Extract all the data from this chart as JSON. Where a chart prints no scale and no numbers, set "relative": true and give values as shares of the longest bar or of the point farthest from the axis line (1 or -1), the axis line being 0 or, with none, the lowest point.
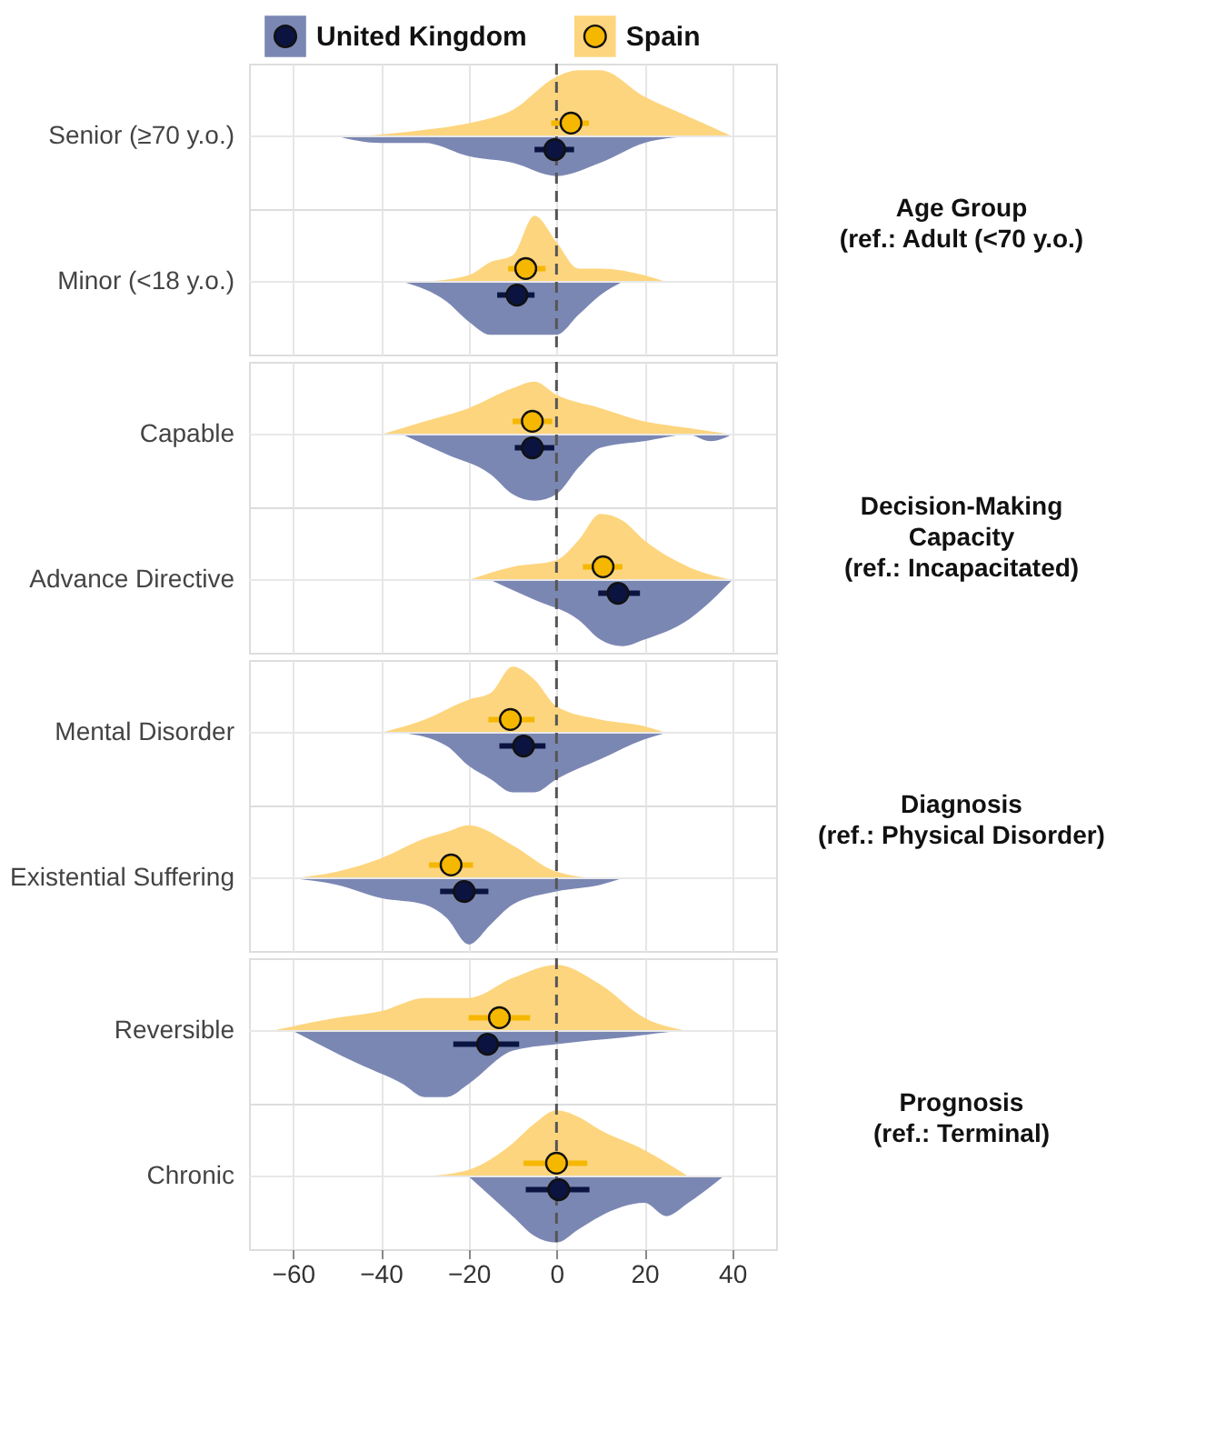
{
  "chart_data": [
    {
      "type": "area",
      "relative": true,
      "ylabel": "Senior (≥70 y.o.)",
      "annotations": [
        "Age Group\n(ref.: Adult (<70 y.o.)"
      ],
      "legend": "top",
      "xlim": [
        -70,
        50
      ],
      "xticks": [
        -60,
        -40,
        -20,
        0,
        20,
        40
      ],
      "grid": "x",
      "tick_labels": false,
      "ref_lines": [
        {
          "axis": "x",
          "value": 0,
          "color": "#555555",
          "line_style": "dashed"
        },
        {
          "axis": "y",
          "value": 0,
          "color": "#e8e8e8"
        }
      ],
      "series": [
        {
          "type": "area",
          "color": "#7b87b3",
          "x": [
            -50,
            -40,
            -30,
            -20,
            -10,
            0,
            10,
            20,
            30
          ],
          "values": [
            0,
            -0.1,
            -0.1,
            -0.3,
            -0.4,
            -0.6,
            -0.4,
            -0.1,
            0
          ]
        },
        {
          "type": "area",
          "color": "#fdd57e",
          "x": [
            -45,
            -30,
            -20,
            -10,
            0,
            5,
            10,
            20,
            30,
            40
          ],
          "values": [
            0,
            0.1,
            0.2,
            0.4,
            0.9,
            1,
            1,
            0.6,
            0.3,
            0
          ]
        },
        {
          "name": "United Kingdom",
          "type": "scatter",
          "marker": "circle",
          "color": "#0b1440",
          "x": [
            -0.4
          ],
          "values": [
            -0.2
          ],
          "xerrors": [
            [
              -5,
              4
            ]
          ]
        },
        {
          "name": "Spain",
          "type": "scatter",
          "marker": "circle",
          "color": "#f5b700",
          "x": [
            3.3
          ],
          "values": [
            0.2
          ],
          "xerrors": [
            [
              -1.2,
              7.4
            ]
          ]
        }
      ]
    },
    {
      "type": "area",
      "relative": true,
      "ylabel": "Minor (<18 y.o.)",
      "xlim": [
        -70,
        50
      ],
      "xticks": [
        -60,
        -40,
        -20,
        0,
        20,
        40
      ],
      "grid": "x",
      "tick_labels": false,
      "ref_lines": [
        {
          "axis": "x",
          "value": 0,
          "color": "#555555",
          "line_style": "dashed"
        },
        {
          "axis": "y",
          "value": 0,
          "color": "#e8e8e8"
        }
      ],
      "series": [
        {
          "type": "area",
          "color": "#7b87b3",
          "x": [
            -35,
            -25,
            -20,
            -15,
            -10,
            -5,
            0,
            5,
            10,
            15
          ],
          "values": [
            0,
            -0.3,
            -0.6,
            -0.8,
            -0.8,
            -0.8,
            -0.8,
            -0.5,
            -0.2,
            0
          ]
        },
        {
          "type": "area",
          "color": "#fdd57e",
          "x": [
            -30,
            -20,
            -15,
            -10,
            -5,
            0,
            5,
            10,
            20,
            25
          ],
          "values": [
            0,
            0.1,
            0.3,
            0.4,
            1,
            0.6,
            0.2,
            0.2,
            0.1,
            0
          ]
        },
        {
          "type": "scatter",
          "marker": "circle",
          "color": "#0b1440",
          "x": [
            -9
          ],
          "values": [
            -0.2
          ],
          "xerrors": [
            [
              -13.5,
              -5
            ]
          ]
        },
        {
          "type": "scatter",
          "marker": "circle",
          "color": "#f5b700",
          "x": [
            -7
          ],
          "values": [
            0.2
          ],
          "xerrors": [
            [
              -11,
              -2.5
            ]
          ]
        }
      ]
    },
    {
      "type": "area",
      "relative": true,
      "ylabel": "Capable",
      "annotations": [
        "Decision-Making\nCapacity\n(ref.: Incapacitated)"
      ],
      "xlim": [
        -70,
        50
      ],
      "xticks": [
        -60,
        -40,
        -20,
        0,
        20,
        40
      ],
      "grid": "x",
      "tick_labels": false,
      "ref_lines": [
        {
          "axis": "x",
          "value": 0,
          "color": "#555555",
          "line_style": "dashed"
        },
        {
          "axis": "y",
          "value": 0,
          "color": "#e8e8e8"
        }
      ],
      "series": [
        {
          "type": "area",
          "color": "#7b87b3",
          "x": [
            -35,
            -25,
            -15,
            -10,
            -5,
            0,
            5,
            10,
            20,
            30,
            35,
            40
          ],
          "values": [
            0,
            -0.3,
            -0.6,
            -0.9,
            -1,
            -0.9,
            -0.5,
            -0.2,
            -0.1,
            0,
            -0.1,
            0
          ]
        },
        {
          "type": "area",
          "color": "#fdd57e",
          "x": [
            -40,
            -30,
            -20,
            -10,
            -5,
            0,
            10,
            20,
            30,
            40
          ],
          "values": [
            0,
            0.2,
            0.4,
            0.7,
            0.8,
            0.6,
            0.4,
            0.2,
            0.1,
            0
          ]
        },
        {
          "type": "scatter",
          "marker": "circle",
          "color": "#0b1440",
          "x": [
            -5.5
          ],
          "values": [
            -0.2
          ],
          "xerrors": [
            [
              -9.5,
              -0.5
            ]
          ]
        },
        {
          "type": "scatter",
          "marker": "circle",
          "color": "#f5b700",
          "x": [
            -5.5
          ],
          "values": [
            0.2
          ],
          "xerrors": [
            [
              -10,
              -1
            ]
          ]
        }
      ]
    },
    {
      "type": "area",
      "relative": true,
      "ylabel": "Advance Directive",
      "xlim": [
        -70,
        50
      ],
      "xticks": [
        -60,
        -40,
        -20,
        0,
        20,
        40
      ],
      "grid": "x",
      "tick_labels": false,
      "ref_lines": [
        {
          "axis": "x",
          "value": 0,
          "color": "#555555",
          "line_style": "dashed"
        },
        {
          "axis": "y",
          "value": 0,
          "color": "#e8e8e8"
        }
      ],
      "series": [
        {
          "type": "area",
          "color": "#7b87b3",
          "x": [
            -15,
            -5,
            5,
            10,
            15,
            20,
            30,
            40
          ],
          "values": [
            0,
            -0.3,
            -0.6,
            -0.9,
            -1,
            -0.9,
            -0.6,
            0
          ]
        },
        {
          "type": "area",
          "color": "#fdd57e",
          "x": [
            -20,
            -10,
            0,
            5,
            10,
            15,
            20,
            30,
            40
          ],
          "values": [
            0,
            0.2,
            0.3,
            0.6,
            1,
            0.9,
            0.6,
            0.2,
            0
          ]
        },
        {
          "type": "scatter",
          "marker": "circle",
          "color": "#0b1440",
          "x": [
            14
          ],
          "values": [
            -0.2
          ],
          "xerrors": [
            [
              9.5,
              19
            ]
          ]
        },
        {
          "type": "scatter",
          "marker": "circle",
          "color": "#f5b700",
          "x": [
            10.6
          ],
          "values": [
            0.2
          ],
          "xerrors": [
            [
              6,
              15
            ]
          ]
        }
      ]
    },
    {
      "type": "area",
      "relative": true,
      "ylabel": "Mental Disorder",
      "annotations": [
        "Diagnosis\n(ref.: Physical Disorder)"
      ],
      "xlim": [
        -70,
        50
      ],
      "xticks": [
        -60,
        -40,
        -20,
        0,
        20,
        40
      ],
      "grid": "x",
      "tick_labels": false,
      "ref_lines": [
        {
          "axis": "x",
          "value": 0,
          "color": "#555555",
          "line_style": "dashed"
        },
        {
          "axis": "y",
          "value": 0,
          "color": "#e8e8e8"
        }
      ],
      "series": [
        {
          "type": "area",
          "color": "#7b87b3",
          "x": [
            -35,
            -25,
            -20,
            -15,
            -10,
            -5,
            0,
            10,
            20,
            25
          ],
          "values": [
            0,
            -0.2,
            -0.5,
            -0.7,
            -0.9,
            -0.9,
            -0.7,
            -0.4,
            -0.1,
            0
          ]
        },
        {
          "type": "area",
          "color": "#fdd57e",
          "x": [
            -40,
            -30,
            -20,
            -15,
            -10,
            -5,
            0,
            10,
            20,
            25
          ],
          "values": [
            0,
            0.2,
            0.5,
            0.6,
            1,
            0.8,
            0.4,
            0.2,
            0.1,
            0
          ]
        },
        {
          "type": "scatter",
          "marker": "circle",
          "color": "#0b1440",
          "x": [
            -7.5
          ],
          "values": [
            -0.2
          ],
          "xerrors": [
            [
              -13,
              -2.5
            ]
          ]
        },
        {
          "type": "scatter",
          "marker": "circle",
          "color": "#f5b700",
          "x": [
            -10.5
          ],
          "values": [
            0.2
          ],
          "xerrors": [
            [
              -15.5,
              -5
            ]
          ]
        }
      ]
    },
    {
      "type": "area",
      "relative": true,
      "ylabel": "Existential Suffering",
      "xlim": [
        -70,
        50
      ],
      "xticks": [
        -60,
        -40,
        -20,
        0,
        20,
        40
      ],
      "grid": "x",
      "tick_labels": false,
      "ref_lines": [
        {
          "axis": "x",
          "value": 0,
          "color": "#555555",
          "line_style": "dashed"
        },
        {
          "axis": "y",
          "value": 0,
          "color": "#e8e8e8"
        }
      ],
      "series": [
        {
          "type": "area",
          "color": "#7b87b3",
          "x": [
            -60,
            -50,
            -40,
            -30,
            -25,
            -20,
            -15,
            -10,
            0,
            10,
            15
          ],
          "values": [
            0,
            -0.1,
            -0.3,
            -0.4,
            -0.6,
            -1,
            -0.7,
            -0.4,
            -0.2,
            -0.1,
            0
          ]
        },
        {
          "type": "area",
          "color": "#fdd57e",
          "x": [
            -60,
            -50,
            -40,
            -30,
            -25,
            -20,
            -10,
            0,
            10,
            15
          ],
          "values": [
            0,
            0.1,
            0.3,
            0.6,
            0.7,
            0.8,
            0.5,
            0.1,
            0,
            0
          ]
        },
        {
          "type": "scatter",
          "marker": "circle",
          "color": "#0b1440",
          "x": [
            -21
          ],
          "values": [
            -0.2
          ],
          "xerrors": [
            [
              -26.5,
              -15.5
            ]
          ]
        },
        {
          "type": "scatter",
          "marker": "circle",
          "color": "#f5b700",
          "x": [
            -24
          ],
          "values": [
            0.2
          ],
          "xerrors": [
            [
              -29,
              -19
            ]
          ]
        }
      ]
    },
    {
      "type": "area",
      "relative": true,
      "ylabel": "Reversible",
      "annotations": [
        "Prognosis\n(ref.: Terminal)"
      ],
      "xlim": [
        -70,
        50
      ],
      "xticks": [
        -60,
        -40,
        -20,
        0,
        20,
        40
      ],
      "grid": "x",
      "tick_labels": false,
      "ref_lines": [
        {
          "axis": "x",
          "value": 0,
          "color": "#555555",
          "line_style": "dashed"
        },
        {
          "axis": "y",
          "value": 0,
          "color": "#e8e8e8"
        }
      ],
      "series": [
        {
          "type": "area",
          "color": "#7b87b3",
          "x": [
            -60,
            -45,
            -35,
            -30,
            -25,
            -20,
            -10,
            0,
            15,
            30,
            45
          ],
          "values": [
            0,
            -0.5,
            -0.8,
            -1,
            -1,
            -0.8,
            -0.3,
            -0.2,
            -0.1,
            0,
            0
          ]
        },
        {
          "type": "area",
          "color": "#fdd57e",
          "x": [
            -65,
            -50,
            -40,
            -30,
            -20,
            -10,
            0,
            10,
            20,
            30
          ],
          "values": [
            0,
            0.2,
            0.3,
            0.5,
            0.5,
            0.8,
            1,
            0.7,
            0.2,
            0
          ]
        },
        {
          "type": "scatter",
          "marker": "circle",
          "color": "#0b1440",
          "x": [
            -15.7
          ],
          "values": [
            -0.2
          ],
          "xerrors": [
            [
              -23.5,
              -8.5
            ]
          ]
        },
        {
          "type": "scatter",
          "marker": "circle",
          "color": "#f5b700",
          "x": [
            -13
          ],
          "values": [
            0.2
          ],
          "xerrors": [
            [
              -20,
              -6
            ]
          ]
        }
      ]
    },
    {
      "type": "area",
      "relative": true,
      "ylabel": "Chronic",
      "xlim": [
        -70,
        50
      ],
      "xticks": [
        -60,
        -40,
        -20,
        0,
        20,
        40
      ],
      "grid": "x",
      "tick_labels": "x",
      "ref_lines": [
        {
          "axis": "x",
          "value": 0,
          "color": "#555555",
          "line_style": "dashed"
        },
        {
          "axis": "y",
          "value": 0,
          "color": "#e8e8e8"
        }
      ],
      "series": [
        {
          "type": "area",
          "color": "#7b87b3",
          "x": [
            -20,
            -10,
            -5,
            0,
            5,
            10,
            20,
            25,
            30,
            38
          ],
          "values": [
            0,
            -0.6,
            -0.9,
            -1,
            -0.8,
            -0.6,
            -0.4,
            -0.6,
            -0.4,
            0
          ]
        },
        {
          "type": "area",
          "color": "#fdd57e",
          "x": [
            -30,
            -20,
            -10,
            -5,
            0,
            5,
            10,
            20,
            30
          ],
          "values": [
            0,
            0.1,
            0.5,
            0.8,
            1,
            0.9,
            0.7,
            0.4,
            0
          ]
        },
        {
          "type": "scatter",
          "marker": "circle",
          "color": "#0b1440",
          "x": [
            0.5
          ],
          "values": [
            -0.2
          ],
          "xerrors": [
            [
              -7,
              7.5
            ]
          ]
        },
        {
          "type": "scatter",
          "marker": "circle",
          "color": "#f5b700",
          "x": [
            0
          ],
          "values": [
            0.2
          ],
          "xerrors": [
            [
              -7.5,
              7
            ]
          ]
        }
      ]
    }
  ]
}
